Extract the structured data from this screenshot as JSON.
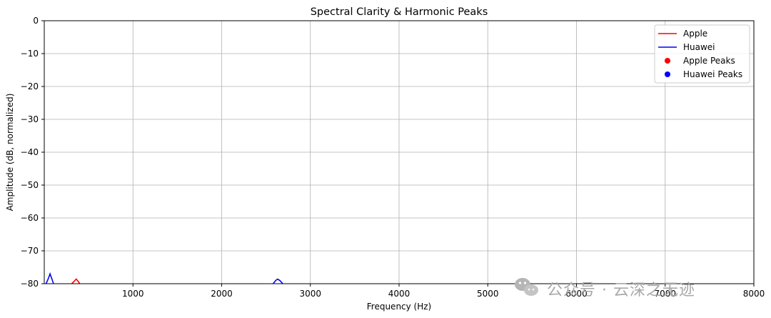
{
  "chart_data": {
    "type": "line",
    "title": "Spectral Clarity & Harmonic Peaks",
    "xlabel": "Frequency (Hz)",
    "ylabel": "Amplitude (dB, normalized)",
    "xlim": [
      0,
      8000
    ],
    "ylim": [
      -80,
      0
    ],
    "xticks": [
      1000,
      2000,
      3000,
      4000,
      5000,
      6000,
      7000,
      8000
    ],
    "yticks": [
      0,
      -10,
      -20,
      -30,
      -40,
      -50,
      -60,
      -70,
      -80
    ],
    "grid": true,
    "legend_position": "top-right",
    "series": [
      {
        "name": "Apple",
        "kind": "line",
        "color": "#ff0000",
        "points": [
          {
            "x": 310,
            "y": -80.0
          },
          {
            "x": 340,
            "y": -79.2
          },
          {
            "x": 360,
            "y": -78.6
          },
          {
            "x": 380,
            "y": -79.2
          },
          {
            "x": 400,
            "y": -80.0
          }
        ]
      },
      {
        "name": "Huawei",
        "kind": "line",
        "color": "#0000ff",
        "points": [
          {
            "x": 20,
            "y": -80.0
          },
          {
            "x": 45,
            "y": -78.5
          },
          {
            "x": 65,
            "y": -77.0
          },
          {
            "x": 85,
            "y": -78.5
          },
          {
            "x": 105,
            "y": -80.0
          },
          {
            "x": 2580,
            "y": -80.0
          },
          {
            "x": 2610,
            "y": -79.0
          },
          {
            "x": 2630,
            "y": -78.6
          },
          {
            "x": 2655,
            "y": -79.0
          },
          {
            "x": 2690,
            "y": -80.0
          }
        ]
      },
      {
        "name": "Apple Peaks",
        "kind": "scatter",
        "color": "#ff0000",
        "points": []
      },
      {
        "name": "Huawei Peaks",
        "kind": "scatter",
        "color": "#0000ff",
        "points": []
      }
    ]
  },
  "watermark": {
    "text": "公众号 · 云深之无迹",
    "icon": "wechat-icon"
  }
}
